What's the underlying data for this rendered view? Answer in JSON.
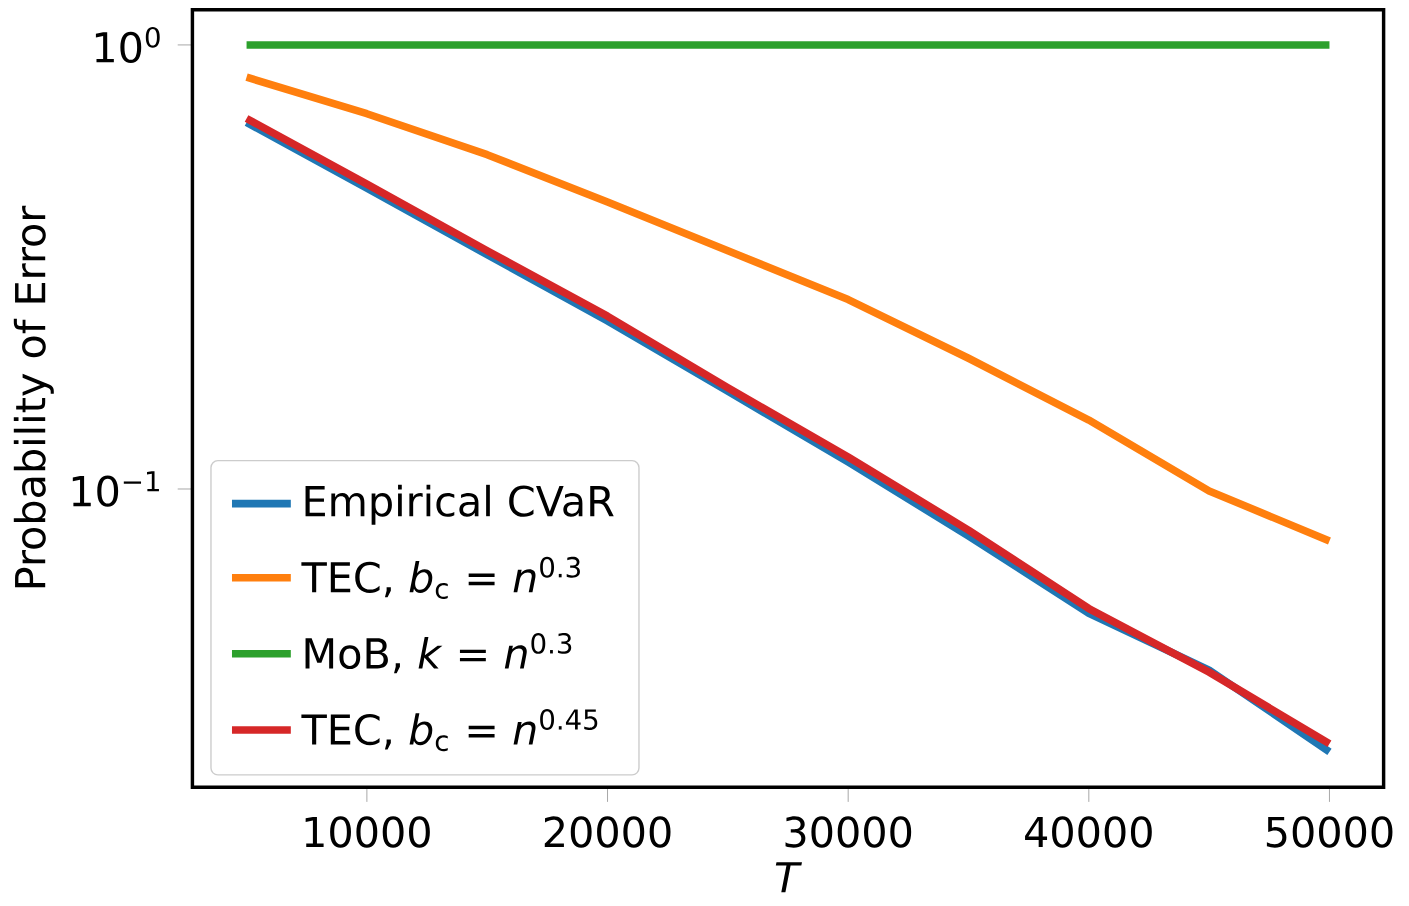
{
  "chart_data": {
    "type": "line",
    "xlabel": "*T*",
    "ylabel": "Probability of Error",
    "log": "y",
    "legend": "bottom left",
    "marker": "none",
    "line_style": "solid",
    "xlim": [
      2750,
      52250
    ],
    "xticks": [
      10000,
      20000,
      30000,
      40000,
      50000
    ],
    "ylim": [
      0.0213,
      1.2
    ],
    "yticks": [
      {
        "value": 1,
        "label": "10$^{0}$"
      },
      {
        "value": 0.1,
        "label": "10$^{−1}$"
      }
    ],
    "x": [
      5000,
      10000,
      15000,
      20000,
      25000,
      30000,
      35000,
      40000,
      45000,
      50000
    ],
    "series": [
      {
        "name": "Empirical CVaR",
        "color": "#1f77b4",
        "values": [
          0.669,
          0.476,
          0.337,
          0.239,
          0.166,
          0.115,
          0.0784,
          0.0525,
          0.0391,
          0.0256
        ]
      },
      {
        "name": "TEC, *b*$_{c}$ = *n*$^{0.3}$",
        "color": "#ff7f0e",
        "values": [
          0.846,
          0.7,
          0.566,
          0.443,
          0.344,
          0.267,
          0.197,
          0.143,
          0.099,
          0.0764
        ]
      },
      {
        "name": "MoB, *k* = *n*$^{0.3}$",
        "color": "#2ca02c",
        "values": [
          1.0,
          1.0,
          1.0,
          1.0,
          1.0,
          1.0,
          1.0,
          1.0,
          1.0,
          1.0
        ]
      },
      {
        "name": "TEC, *b*$_{c}$ = *n*$^{0.45}$",
        "color": "#d62728",
        "values": [
          0.683,
          0.486,
          0.344,
          0.245,
          0.169,
          0.118,
          0.0808,
          0.0538,
          0.0387,
          0.0267
        ]
      }
    ]
  }
}
